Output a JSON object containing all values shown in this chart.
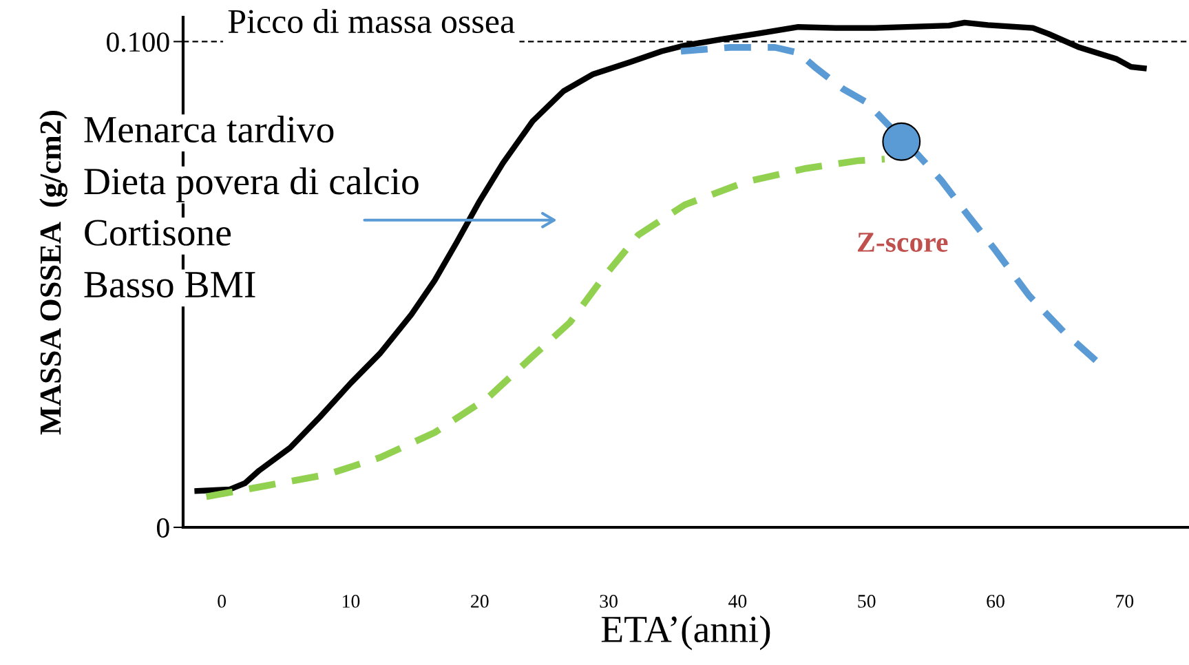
{
  "chart_data": {
    "type": "line",
    "xlabel": "ETA’(anni)",
    "ylabel": "MASSA OSSEA  (g/cm2)",
    "xlim": [
      -3,
      75
    ],
    "xticks": [
      0,
      10,
      20,
      30,
      40,
      50,
      60,
      70
    ],
    "ylim": [
      0,
      0.105
    ],
    "yticks": [
      0,
      {
        "value": 0.1,
        "label": "0.100"
      }
    ],
    "grid": false,
    "legend": false,
    "series": [
      {
        "color": "#000000",
        "line_style": "solid",
        "x": [
          -1.9,
          0.6,
          1.8,
          2.9,
          5.3,
          7.6,
          10.0,
          12.3,
          14.7,
          16.5,
          18.2,
          20.0,
          21.8,
          24.1,
          26.5,
          28.8,
          31.7,
          34.1,
          35.9,
          38.8,
          41.7,
          44.7,
          47.6,
          50.6,
          56.4,
          57.6,
          59.4,
          62.9,
          64.1,
          66.4,
          69.4,
          70.5,
          71.5
        ],
        "values": [
          0.0075,
          0.0078,
          0.0091,
          0.0117,
          0.0164,
          0.0227,
          0.0297,
          0.0359,
          0.0438,
          0.0508,
          0.0586,
          0.0672,
          0.075,
          0.0836,
          0.0898,
          0.0933,
          0.0958,
          0.098,
          0.0992,
          0.1005,
          0.1017,
          0.103,
          0.1028,
          0.1028,
          0.1033,
          0.1039,
          0.1034,
          0.1028,
          0.1016,
          0.0989,
          0.0964,
          0.0948,
          0.0945
        ]
      },
      {
        "color": "#92d050",
        "line_style": "dashed",
        "x": [
          -1.2,
          3.5,
          8.2,
          12.3,
          16.5,
          20.6,
          24.1,
          27.0,
          29.4,
          32.3,
          35.9,
          40.6,
          45.3,
          49.4,
          51.4
        ],
        "values": [
          0.0063,
          0.0086,
          0.0109,
          0.0144,
          0.0195,
          0.0266,
          0.0352,
          0.0422,
          0.0508,
          0.0602,
          0.0664,
          0.0711,
          0.0739,
          0.0755,
          0.0758
        ]
      },
      {
        "color": "#5b9bd5",
        "line_style": "dashed",
        "x": [
          35.6,
          39.4,
          42.9,
          44.7,
          46.1,
          48.2,
          50.0,
          51.7,
          53.5,
          55.8,
          57.9,
          60.0,
          62.6,
          65.3,
          68.1
        ],
        "values": [
          0.098,
          0.0988,
          0.0988,
          0.0977,
          0.0945,
          0.0902,
          0.0875,
          0.0828,
          0.0781,
          0.0714,
          0.0641,
          0.057,
          0.0477,
          0.0402,
          0.0336
        ]
      },
      {
        "type": "scatter",
        "color": "#5b9bd5",
        "marker": "circle",
        "x": [
          52.7
        ],
        "values": [
          0.0794
        ]
      }
    ],
    "ref_lines": [
      {
        "axis": "y",
        "value": 0.1,
        "label": "Picco di massa ossea",
        "color": "#000000",
        "line_style": "dashed"
      }
    ],
    "annotations": [
      "Menarca tardivo",
      "Dieta povera di calcio",
      "Cortisone",
      "Basso BMI",
      "Z-score"
    ]
  }
}
